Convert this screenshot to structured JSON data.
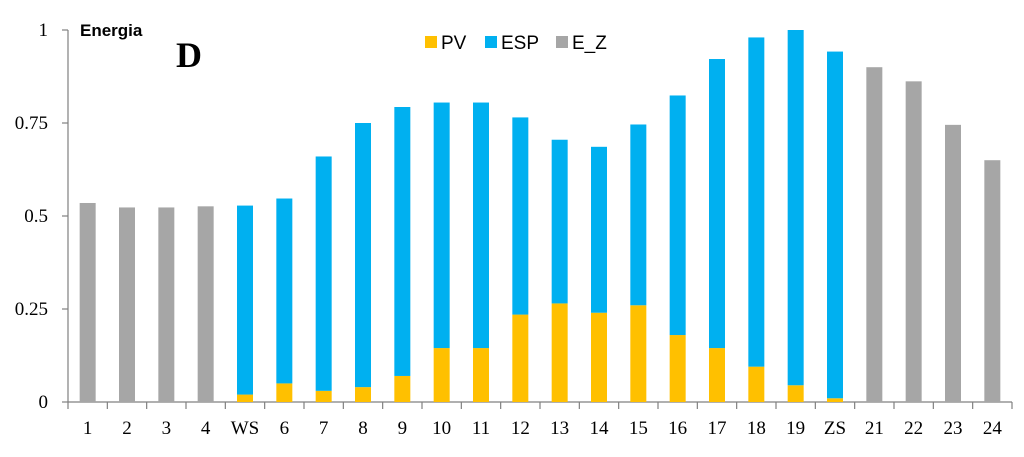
{
  "chart_data": {
    "type": "bar",
    "stacked": true,
    "title": "Energia",
    "panel_label": "D",
    "categories": [
      "1",
      "2",
      "3",
      "4",
      "WS",
      "6",
      "7",
      "8",
      "9",
      "10",
      "11",
      "12",
      "13",
      "14",
      "15",
      "16",
      "17",
      "18",
      "19",
      "ZS",
      "21",
      "22",
      "23",
      "24"
    ],
    "series": [
      {
        "name": "PV",
        "color": "#FFC000",
        "values": [
          0,
          0,
          0,
          0,
          0.02,
          0.05,
          0.03,
          0.04,
          0.07,
          0.145,
          0.145,
          0.235,
          0.265,
          0.24,
          0.26,
          0.18,
          0.145,
          0.095,
          0.045,
          0.01,
          0,
          0,
          0,
          0
        ]
      },
      {
        "name": "ESP",
        "color": "#00B0F0",
        "values": [
          0,
          0,
          0,
          0,
          0.508,
          0.497,
          0.63,
          0.71,
          0.723,
          0.66,
          0.66,
          0.53,
          0.44,
          0.446,
          0.486,
          0.644,
          0.777,
          0.885,
          0.955,
          0.932,
          0,
          0,
          0,
          0
        ]
      },
      {
        "name": "E_Z",
        "color": "#A6A6A6",
        "values": [
          0.535,
          0.523,
          0.523,
          0.526,
          0,
          0,
          0,
          0,
          0,
          0,
          0,
          0,
          0,
          0,
          0,
          0,
          0,
          0,
          0,
          0,
          0.9,
          0.862,
          0.745,
          0.65
        ]
      }
    ],
    "y_ticks": [
      "0",
      "0.25",
      "0.5",
      "0.75",
      "1"
    ],
    "ylim": [
      0,
      1
    ],
    "xlabel": "",
    "ylabel": "",
    "grid": false,
    "legend_position": "top-center"
  }
}
